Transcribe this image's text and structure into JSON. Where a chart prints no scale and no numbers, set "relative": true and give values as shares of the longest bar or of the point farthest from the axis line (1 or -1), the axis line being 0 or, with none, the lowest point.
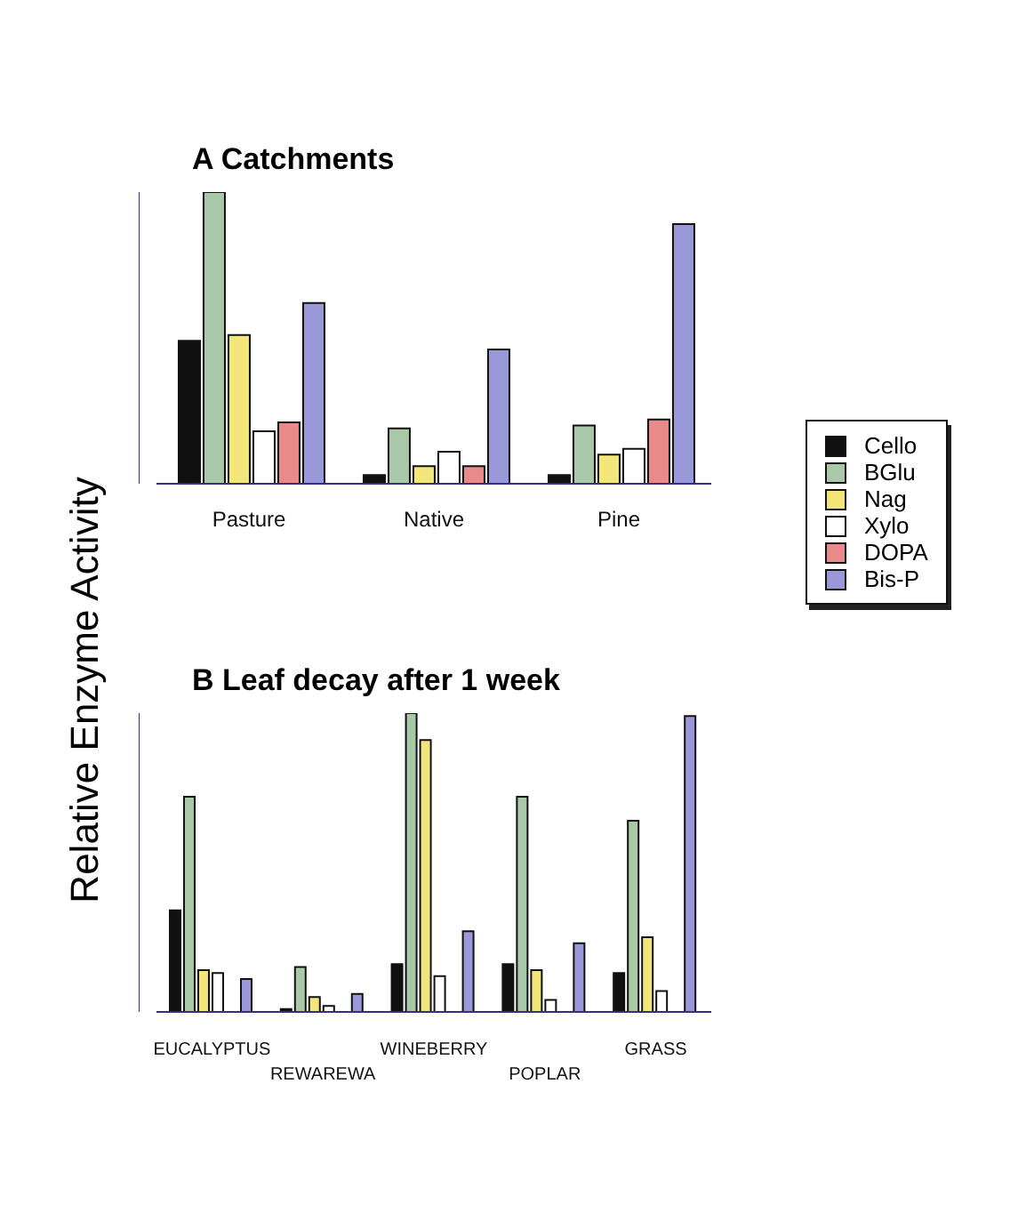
{
  "chart_data": [
    {
      "type": "bar",
      "title": "A  Catchments",
      "ylabel": "Relative Enzyme Activity",
      "relative": true,
      "legend": "right",
      "categories": [
        "Pasture",
        "Native",
        "Pine"
      ],
      "series": [
        {
          "name": "Cello",
          "color": "#111111",
          "values": [
            0.49,
            0.03,
            0.03
          ]
        },
        {
          "name": "BGlu",
          "color": "#a8c8a8",
          "values": [
            1,
            0.19,
            0.2
          ]
        },
        {
          "name": "Nag",
          "color": "#f2e67a",
          "values": [
            0.51,
            0.06,
            0.1
          ]
        },
        {
          "name": "Xylo",
          "color": "#ffffff",
          "values": [
            0.18,
            0.11,
            0.12
          ]
        },
        {
          "name": "DOPA",
          "color": "#e88a8a",
          "values": [
            0.21,
            0.06,
            0.22
          ]
        },
        {
          "name": "Bis-P",
          "color": "#9a98d8",
          "values": [
            0.62,
            0.46,
            0.89
          ]
        }
      ]
    },
    {
      "type": "bar",
      "title": "B  Leaf decay after 1 week",
      "relative": true,
      "categories": [
        "EUCALYPTUS",
        "REWAREWA",
        "WINEBERRY",
        "POPLAR",
        "GRASS"
      ],
      "series": [
        {
          "color": "#111111",
          "values": [
            0.34,
            0.01,
            0.16,
            0.16,
            0.13
          ]
        },
        {
          "color": "#a8c8a8",
          "values": [
            0.72,
            0.15,
            1,
            0.72,
            0.64
          ]
        },
        {
          "color": "#f2e67a",
          "values": [
            0.14,
            0.05,
            0.91,
            0.14,
            0.25
          ]
        },
        {
          "color": "#ffffff",
          "values": [
            0.13,
            0.02,
            0.12,
            0.04,
            0.07
          ]
        },
        {
          "color": "#e88a8a",
          "values": [
            null,
            null,
            null,
            null,
            null
          ]
        },
        {
          "color": "#9a98d8",
          "values": [
            0.11,
            0.06,
            0.27,
            0.23,
            0.99
          ]
        }
      ]
    }
  ]
}
